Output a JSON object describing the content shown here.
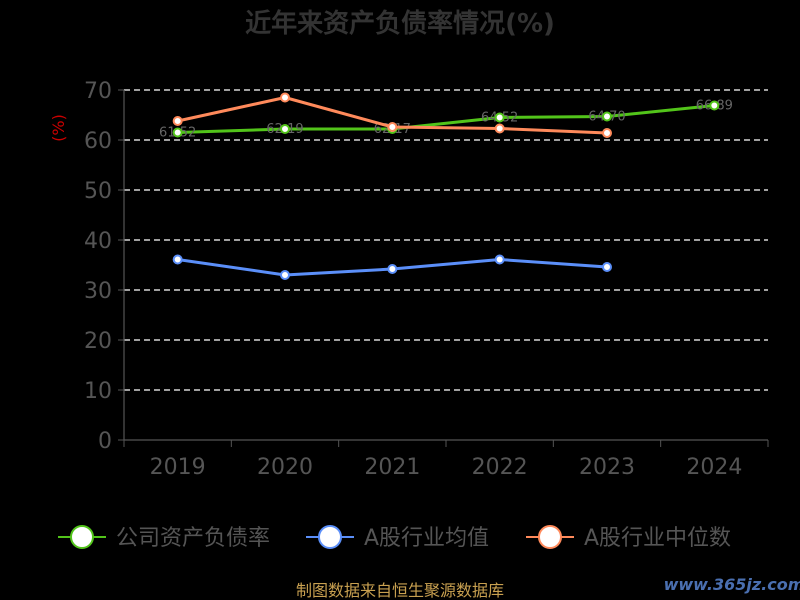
{
  "chart_data": {
    "type": "line",
    "title": "近年来资产负债率情况(%)",
    "ylabel": "(%)",
    "xlabel": "",
    "categories": [
      "2019",
      "2020",
      "2021",
      "2022",
      "2023",
      "2024"
    ],
    "ylim": [
      0,
      70
    ],
    "yticks": [
      "0",
      "10",
      "20",
      "30",
      "40",
      "50",
      "60",
      "70"
    ],
    "grid": true,
    "legend_position": "bottom",
    "series": [
      {
        "name": "公司资产负债率",
        "color": "#52c41a",
        "values": [
          61.5,
          62.2,
          62.2,
          64.5,
          64.7,
          66.9
        ],
        "labels": [
          "61.52",
          "62.19",
          "62.17",
          "64.52",
          "64.70",
          "66.89"
        ]
      },
      {
        "name": "A股行业均值",
        "color": "#5b8ff9",
        "values": [
          36.1,
          33.0,
          34.2,
          36.1,
          34.6,
          null
        ],
        "labels": [
          "",
          "",
          "",
          "",
          "",
          ""
        ]
      },
      {
        "name": "A股行业中位数",
        "color": "#ff8a5b",
        "values": [
          63.8,
          68.5,
          62.6,
          62.3,
          61.4,
          null
        ],
        "labels": [
          "",
          "",
          "",
          "",
          "",
          ""
        ]
      }
    ]
  },
  "footer": "制图数据来自恒生聚源数据库",
  "watermark": "www.365jz.com"
}
